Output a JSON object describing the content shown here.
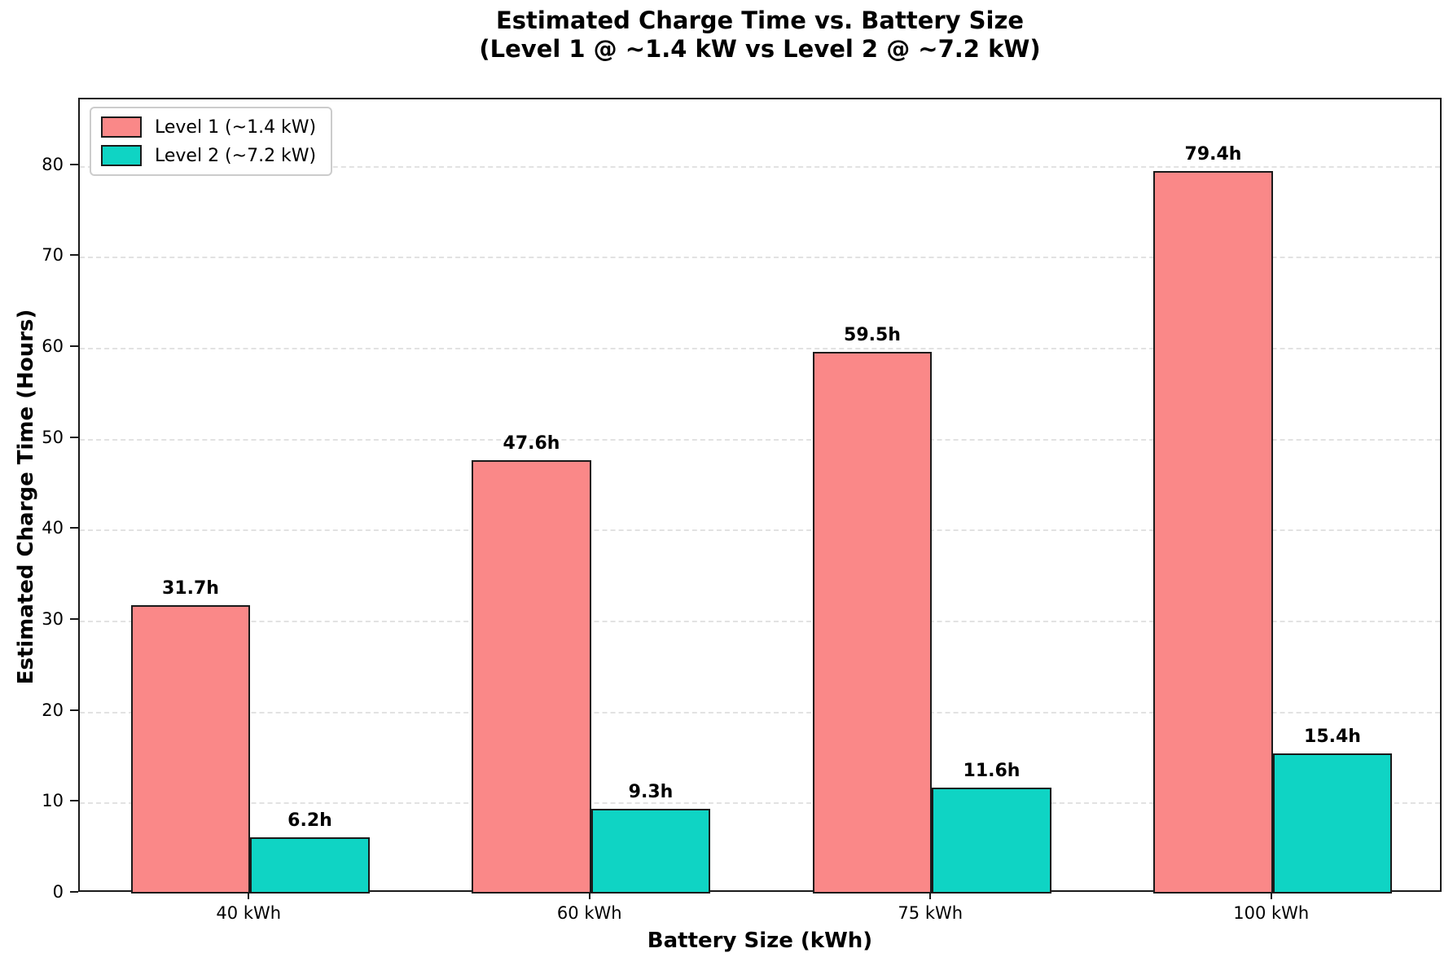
{
  "title": {
    "line1": "Estimated Charge Time vs. Battery Size",
    "line2": "(Level 1 @ ~1.4 kW vs Level 2 @ ~7.2 kW)"
  },
  "chart_data": {
    "type": "bar",
    "categories": [
      "40 kWh",
      "60 kWh",
      "75 kWh",
      "100 kWh"
    ],
    "series": [
      {
        "name": "Level 1 (~1.4 kW)",
        "color": "#fa8888",
        "values": [
          31.7,
          47.6,
          59.5,
          79.4
        ],
        "bar_labels": [
          "31.7h",
          "47.6h",
          "59.5h",
          "79.4h"
        ]
      },
      {
        "name": "Level 2 (~7.2 kW)",
        "color": "#0fd4c4",
        "values": [
          6.2,
          9.3,
          11.6,
          15.4
        ],
        "bar_labels": [
          "6.2h",
          "9.3h",
          "11.6h",
          "15.4h"
        ]
      }
    ],
    "xlabel": "Battery Size (kWh)",
    "ylabel": "Estimated Charge Time (Hours)",
    "ylim": [
      0,
      87.3
    ],
    "yticks": [
      0,
      10,
      20,
      30,
      40,
      50,
      60,
      70,
      80
    ],
    "grid": "horizontal-dashed",
    "legend_position": "upper-left",
    "colors": {
      "bar_edge": "#1a1a1a",
      "gridline": "#e2e2e2",
      "spine": "#1a1a1a",
      "background": "#ffffff"
    }
  }
}
